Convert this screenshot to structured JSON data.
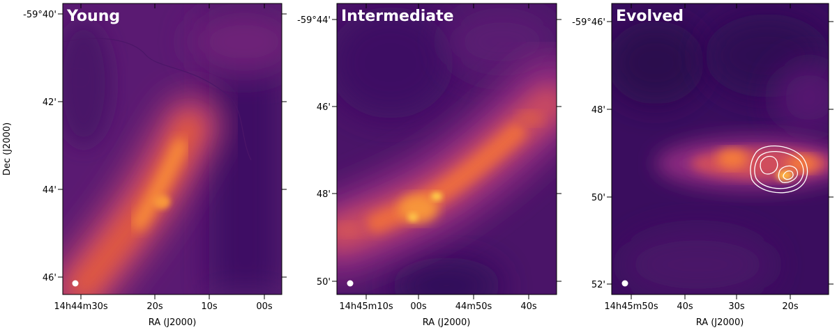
{
  "figure": {
    "panels": [
      {
        "title": "Young",
        "ra_ticks": [
          "14h44m30s",
          "20s",
          "10s",
          "00s"
        ],
        "dec_ticks": [
          "-59°40'",
          "42'",
          "44'",
          "46'"
        ],
        "xlabel": "RA (J2000)",
        "ylabel": "Dec (J2000)",
        "beam": "filled white circle",
        "contours": false
      },
      {
        "title": "Intermediate",
        "ra_ticks": [
          "14h45m10s",
          "00s",
          "44m50s",
          "40s"
        ],
        "dec_ticks": [
          "-59°44'",
          "46'",
          "48'",
          "50'"
        ],
        "xlabel": "RA (J2000)",
        "ylabel": "",
        "beam": "filled white circle",
        "contours": false
      },
      {
        "title": "Evolved",
        "ra_ticks": [
          "14h45m50s",
          "40s",
          "30s",
          "20s"
        ],
        "dec_ticks": [
          "-59°46'",
          "48'",
          "50'",
          "52'"
        ],
        "xlabel": "RA (J2000)",
        "ylabel": "",
        "beam": "filled white circle",
        "contours": true
      }
    ],
    "colormap": "inferno",
    "colors": {
      "dark": "#3a0d5e",
      "mid": "#8c2a82",
      "bright": "#f0743a",
      "peak": "#ffd24a"
    }
  }
}
